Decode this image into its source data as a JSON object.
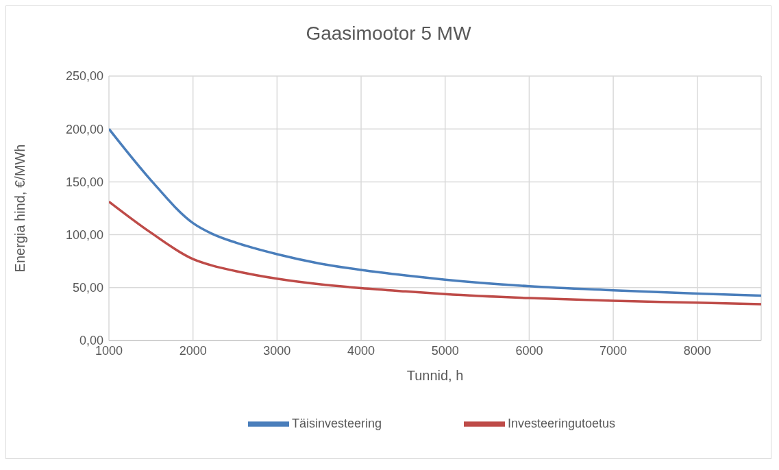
{
  "chart_data": {
    "type": "line",
    "title": "Gaasimootor 5 MW",
    "xlabel": "Tunnid, h",
    "ylabel": "Energia hind, €/MWh",
    "x": [
      1000,
      1500,
      2000,
      2230,
      2510,
      3000,
      3500,
      4000,
      4530,
      5000,
      6000,
      7000,
      8000,
      8760
    ],
    "series": [
      {
        "name": "Täisinvesteering",
        "color": "#4a7ebb",
        "values": [
          200,
          151.5,
          111,
          100.8,
          92.5,
          81.6,
          72.9,
          66.7,
          61.5,
          57.5,
          51.3,
          47.5,
          44.3,
          42.4
        ]
      },
      {
        "name": "Investeeringutoetus",
        "color": "#be4b48",
        "values": [
          131.3,
          101.9,
          77,
          70.8,
          65.6,
          58.4,
          53.2,
          49.5,
          46.4,
          43.9,
          40.1,
          37.5,
          35.8,
          34.3
        ]
      }
    ],
    "xlim": [
      1000,
      8760
    ],
    "xticks": [
      1000,
      2000,
      3000,
      4000,
      5000,
      6000,
      7000,
      8000
    ],
    "ylim": [
      0,
      250
    ],
    "yticks": [
      {
        "value": 0,
        "label": "0,00"
      },
      {
        "value": 50,
        "label": "50,00"
      },
      {
        "value": 100,
        "label": "100,00"
      },
      {
        "value": 150,
        "label": "150,00"
      },
      {
        "value": 200,
        "label": "200,00"
      },
      {
        "value": 250,
        "label": "250,00"
      }
    ],
    "grid": true,
    "legend": "bottom",
    "marker": "none",
    "line_style": "solid"
  }
}
